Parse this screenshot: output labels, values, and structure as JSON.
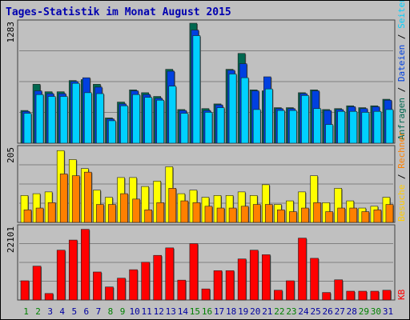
{
  "title": "Tages-Statistik im Monat August 2015",
  "colors": {
    "background": "#c0c0c0",
    "title": "#0000b0",
    "anfragen": "#006850",
    "dateien": "#0040e0",
    "seiten": "#00d0ff",
    "besuche": "#ffff00",
    "rechner": "#ff8000",
    "kb": "#ff0000",
    "weekend_label": "#008000",
    "weekday_label": "#0000a0"
  },
  "chart_data": [
    {
      "type": "bar",
      "panel": "top",
      "max_label": "1283",
      "ylim": [
        0,
        1283
      ],
      "categories": [
        "1",
        "2",
        "3",
        "4",
        "5",
        "6",
        "7",
        "8",
        "9",
        "10",
        "11",
        "12",
        "13",
        "14",
        "15",
        "16",
        "17",
        "18",
        "19",
        "20",
        "21",
        "22",
        "23",
        "24",
        "25",
        "26",
        "27",
        "28",
        "29",
        "30",
        "31"
      ],
      "series": [
        {
          "name": "Anfragen",
          "color": "#006850",
          "values": [
            350,
            630,
            550,
            550,
            670,
            680,
            630,
            270,
            440,
            570,
            540,
            500,
            790,
            360,
            1283,
            370,
            420,
            790,
            960,
            570,
            560,
            380,
            380,
            540,
            570,
            360,
            370,
            400,
            380,
            400,
            470
          ]
        },
        {
          "name": "Dateien",
          "color": "#0040e0",
          "values": [
            340,
            560,
            530,
            530,
            660,
            700,
            600,
            260,
            420,
            560,
            520,
            480,
            770,
            350,
            1210,
            350,
            410,
            780,
            850,
            560,
            710,
            370,
            370,
            530,
            560,
            350,
            360,
            390,
            370,
            390,
            460
          ]
        },
        {
          "name": "Seiten",
          "color": "#00d0ff",
          "values": [
            320,
            520,
            500,
            500,
            640,
            540,
            530,
            240,
            400,
            520,
            490,
            460,
            610,
            320,
            1150,
            330,
            380,
            740,
            700,
            360,
            580,
            350,
            350,
            510,
            370,
            200,
            340,
            340,
            330,
            340,
            360
          ]
        }
      ]
    },
    {
      "type": "bar",
      "panel": "middle",
      "max_label": "205",
      "ylim": [
        0,
        205
      ],
      "categories": [
        "1",
        "2",
        "3",
        "4",
        "5",
        "6",
        "7",
        "8",
        "9",
        "10",
        "11",
        "12",
        "13",
        "14",
        "15",
        "16",
        "17",
        "18",
        "19",
        "20",
        "21",
        "22",
        "23",
        "24",
        "25",
        "26",
        "27",
        "28",
        "29",
        "30",
        "31"
      ],
      "series": [
        {
          "name": "Besuche",
          "color": "#ffff00",
          "values": [
            75,
            80,
            85,
            200,
            175,
            150,
            90,
            70,
            125,
            125,
            100,
            115,
            155,
            80,
            90,
            70,
            75,
            75,
            85,
            75,
            105,
            50,
            60,
            85,
            130,
            55,
            95,
            60,
            40,
            45,
            70
          ]
        },
        {
          "name": "Rechner",
          "color": "#ff8000",
          "values": [
            35,
            40,
            55,
            135,
            130,
            140,
            50,
            50,
            80,
            65,
            35,
            55,
            95,
            60,
            55,
            45,
            40,
            40,
            45,
            50,
            50,
            35,
            30,
            40,
            55,
            30,
            40,
            40,
            30,
            35,
            50
          ]
        }
      ]
    },
    {
      "type": "bar",
      "panel": "bottom",
      "max_label": "22101",
      "ylim": [
        0,
        22101
      ],
      "categories": [
        "1",
        "2",
        "3",
        "4",
        "5",
        "6",
        "7",
        "8",
        "9",
        "10",
        "11",
        "12",
        "13",
        "14",
        "15",
        "16",
        "17",
        "18",
        "19",
        "20",
        "21",
        "22",
        "23",
        "24",
        "25",
        "26",
        "27",
        "28",
        "29",
        "30",
        "31"
      ],
      "series": [
        {
          "name": "KB",
          "color": "#ff0000",
          "values": [
            5900,
            10400,
            2000,
            15300,
            18400,
            21700,
            8600,
            4000,
            6700,
            9300,
            11600,
            13700,
            16000,
            6100,
            17300,
            3400,
            9000,
            9000,
            12600,
            15300,
            13900,
            3000,
            5900,
            19000,
            12800,
            2300,
            6200,
            2700,
            2700,
            2700,
            3000
          ]
        }
      ]
    }
  ],
  "legend_right": {
    "top": [
      {
        "text": "Anfragen",
        "color": "#006850"
      },
      {
        "text": "Dateien",
        "color": "#0040e0"
      },
      {
        "text": "Seiten",
        "color": "#00d0ff"
      }
    ],
    "middle": [
      {
        "text": "Besuche",
        "color": "#ffcc00"
      },
      {
        "text": "Rechner",
        "color": "#ff8000"
      }
    ],
    "bottom": [
      {
        "text": "KB",
        "color": "#ff0000"
      }
    ]
  },
  "weekend_days": [
    "1",
    "2",
    "8",
    "9",
    "15",
    "16",
    "22",
    "23",
    "29",
    "30"
  ]
}
